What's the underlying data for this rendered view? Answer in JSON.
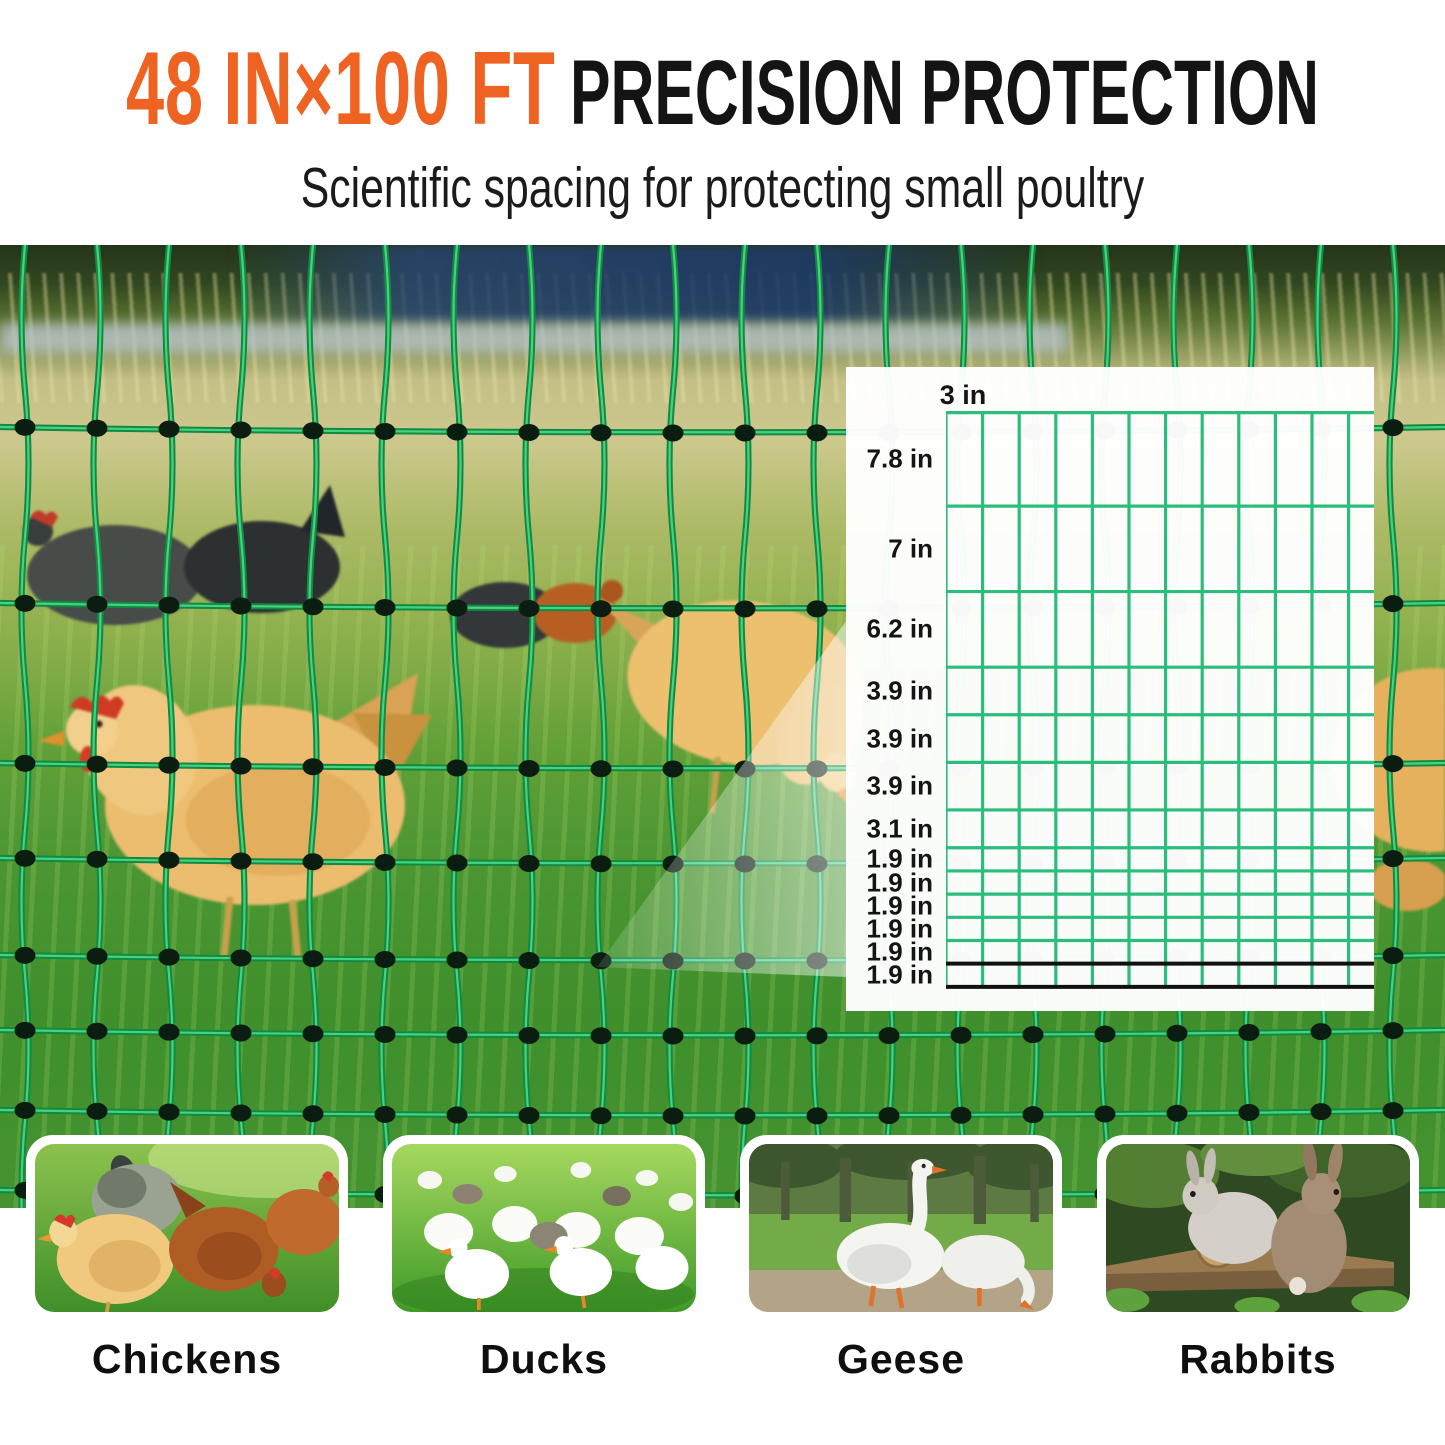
{
  "header": {
    "size_text": "48 IN×100 FT",
    "title": "PRECISION PROTECTION",
    "subtitle": "Scientific spacing for protecting small poultry",
    "accent_color": "#ef6322",
    "title_color": "#141414"
  },
  "diagram": {
    "column_label": "3 in",
    "column_width_in": 3,
    "rows": [
      {
        "label": "7.8 in",
        "inches": 7.8
      },
      {
        "label": "7 in",
        "inches": 7
      },
      {
        "label": "6.2 in",
        "inches": 6.2
      },
      {
        "label": "3.9 in",
        "inches": 3.9
      },
      {
        "label": "3.9 in",
        "inches": 3.9
      },
      {
        "label": "3.9 in",
        "inches": 3.9
      },
      {
        "label": "3.1 in",
        "inches": 3.1
      },
      {
        "label": "1.9 in",
        "inches": 1.9
      },
      {
        "label": "1.9 in",
        "inches": 1.9
      },
      {
        "label": "1.9 in",
        "inches": 1.9
      },
      {
        "label": "1.9 in",
        "inches": 1.9
      },
      {
        "label": "1.9 in",
        "inches": 1.9
      },
      {
        "label": "1.9 in",
        "inches": 1.9
      }
    ],
    "grid_color": "#2abd7c",
    "bottom_line_color": "#111111",
    "black_bottom_lines": 2
  },
  "cards": [
    {
      "label": "Chickens"
    },
    {
      "label": "Ducks"
    },
    {
      "label": "Geese"
    },
    {
      "label": "Rabbits"
    }
  ],
  "colors": {
    "net_green_dark": "#128a42",
    "net_green_light": "#46d381",
    "net_knot": "#0b1d10"
  },
  "chart_data": {
    "type": "table",
    "title": "Net mesh spacing (48 in × 100 ft poultry netting)",
    "column_label": "3 in",
    "column_width_in": 3,
    "row_labels_top_to_bottom": [
      "7.8 in",
      "7 in",
      "6.2 in",
      "3.9 in",
      "3.9 in",
      "3.9 in",
      "3.1 in",
      "1.9 in",
      "1.9 in",
      "1.9 in",
      "1.9 in",
      "1.9 in",
      "1.9 in"
    ],
    "row_heights_in_top_to_bottom": [
      7.8,
      7,
      6.2,
      3.9,
      3.9,
      3.9,
      3.1,
      1.9,
      1.9,
      1.9,
      1.9,
      1.9,
      1.9
    ],
    "notes": "green grid of mesh cells; bottom two horizontal strands drawn in black"
  }
}
